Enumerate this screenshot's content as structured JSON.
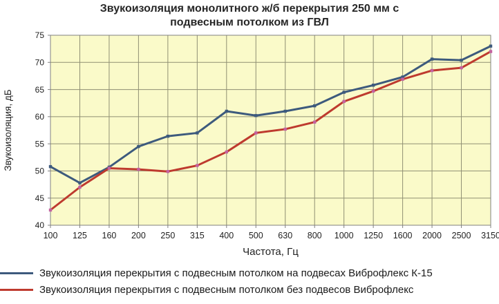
{
  "chart_data": {
    "type": "line",
    "title": "Звукоизоляция монолитного ж/б перекрытия 250 мм с подвесным потолком из ГВЛ",
    "xlabel": "Частота, Гц",
    "ylabel": "Звукоизоляция, дБ",
    "categories": [
      "100",
      "125",
      "160",
      "200",
      "250",
      "315",
      "400",
      "500",
      "630",
      "800",
      "1000",
      "1250",
      "1600",
      "2000",
      "2500",
      "3150"
    ],
    "ylim": [
      40,
      75
    ],
    "ytick_step": 5,
    "grid": true,
    "legend_position": "bottom-left",
    "plot_bg_color": "#FAFAC9",
    "grid_color": "#8F8F73",
    "axis_color": "#808080",
    "text_color": "#1F1F1F",
    "series": [
      {
        "name": "Звукоизоляция перекрытия с подвесным потолком на подвесах Виброфлекс К-15",
        "color": "#3D5A7D",
        "marker_color": "#3D5A7D",
        "values": [
          50.8,
          47.8,
          50.7,
          54.5,
          56.4,
          57,
          61,
          60.2,
          61,
          62,
          64.5,
          65.8,
          67.3,
          70.6,
          70.4,
          73
        ]
      },
      {
        "name": "Звукоизоляция перекрытия с подвесным потолком без подвесов Виброфлекс",
        "color": "#BE3A2E",
        "marker_color": "#C4619F",
        "values": [
          42.8,
          47,
          50.5,
          50.3,
          49.9,
          51,
          53.5,
          57,
          57.7,
          59,
          62.8,
          64.7,
          66.9,
          68.5,
          69,
          72
        ]
      }
    ]
  }
}
